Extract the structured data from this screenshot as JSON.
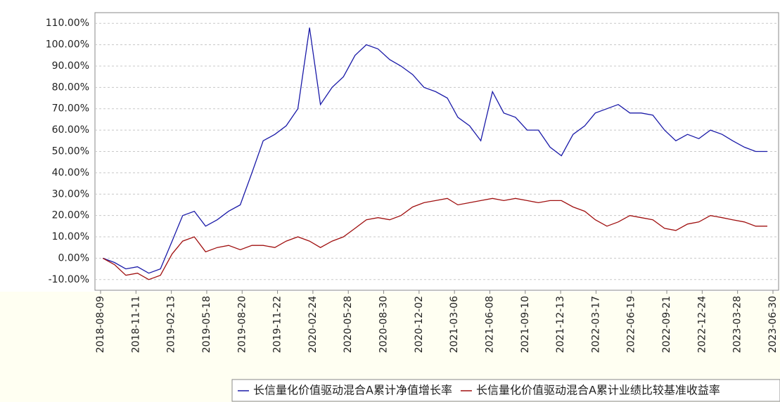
{
  "chart_data": {
    "type": "line",
    "x": [
      "2018-08",
      "2018-09",
      "2018-10",
      "2018-11",
      "2018-12",
      "2019-01",
      "2019-02",
      "2019-03",
      "2019-04",
      "2019-05",
      "2019-06",
      "2019-07",
      "2019-08",
      "2019-09",
      "2019-10",
      "2019-11",
      "2019-12",
      "2020-01",
      "2020-02",
      "2020-03",
      "2020-04",
      "2020-05",
      "2020-06",
      "2020-07",
      "2020-08",
      "2020-09",
      "2020-10",
      "2020-11",
      "2020-12",
      "2021-01",
      "2021-02",
      "2021-03",
      "2021-04",
      "2021-05",
      "2021-06",
      "2021-07",
      "2021-08",
      "2021-09",
      "2021-10",
      "2021-11",
      "2021-12",
      "2022-01",
      "2022-02",
      "2022-03",
      "2022-04",
      "2022-05",
      "2022-06",
      "2022-07",
      "2022-08",
      "2022-09",
      "2022-10",
      "2022-11",
      "2022-12",
      "2023-01",
      "2023-02",
      "2023-03",
      "2023-04",
      "2023-05",
      "2023-06"
    ],
    "series": [
      {
        "name": "长信量化价值驱动混合A累计净值增长率",
        "color": "#1a1aa8",
        "values": [
          0,
          -2,
          -5,
          -4,
          -7,
          -5,
          8,
          20,
          22,
          15,
          18,
          22,
          25,
          40,
          55,
          58,
          62,
          70,
          108,
          72,
          80,
          85,
          95,
          100,
          98,
          93,
          90,
          86,
          80,
          78,
          75,
          66,
          62,
          55,
          78,
          68,
          66,
          60,
          60,
          52,
          48,
          58,
          62,
          68,
          70,
          72,
          68,
          68,
          67,
          60,
          55,
          58,
          56,
          60,
          58,
          55,
          52,
          50,
          50
        ]
      },
      {
        "name": "长信量化价值驱动混合A累计业绩比较基准收益率",
        "color": "#a01010",
        "values": [
          0,
          -3,
          -8,
          -7,
          -10,
          -8,
          2,
          8,
          10,
          3,
          5,
          6,
          4,
          6,
          6,
          5,
          8,
          10,
          8,
          5,
          8,
          10,
          14,
          18,
          19,
          18,
          20,
          24,
          26,
          27,
          28,
          25,
          26,
          27,
          28,
          27,
          28,
          27,
          26,
          27,
          27,
          24,
          22,
          18,
          15,
          17,
          20,
          19,
          18,
          14,
          13,
          16,
          17,
          20,
          19,
          18,
          17,
          15,
          15
        ]
      }
    ],
    "xlim": [
      "2018-08-09",
      "2023-06-30"
    ],
    "xticks": [
      "2018-08-09",
      "2018-11-11",
      "2019-02-13",
      "2019-05-18",
      "2019-08-20",
      "2019-11-22",
      "2020-02-24",
      "2020-05-28",
      "2020-08-30",
      "2020-12-02",
      "2021-03-06",
      "2021-06-08",
      "2021-09-10",
      "2021-12-13",
      "2022-03-17",
      "2022-06-19",
      "2022-09-21",
      "2022-12-24",
      "2023-03-28",
      "2023-06-30"
    ],
    "ylim": [
      -15,
      115
    ],
    "yticks": [
      {
        "value": -10,
        "label": "-10.00%"
      },
      {
        "value": 0,
        "label": "0.00%"
      },
      {
        "value": 10,
        "label": "10.00%"
      },
      {
        "value": 20,
        "label": "20.00%"
      },
      {
        "value": 30,
        "label": "30.00%"
      },
      {
        "value": 40,
        "label": "40.00%"
      },
      {
        "value": 50,
        "label": "50.00%"
      },
      {
        "value": 60,
        "label": "60.00%"
      },
      {
        "value": 70,
        "label": "70.00%"
      },
      {
        "value": 80,
        "label": "80.00%"
      },
      {
        "value": 90,
        "label": "90.00%"
      },
      {
        "value": 100,
        "label": "100.00%"
      },
      {
        "value": 110,
        "label": "110.00%"
      }
    ],
    "grid": true
  }
}
